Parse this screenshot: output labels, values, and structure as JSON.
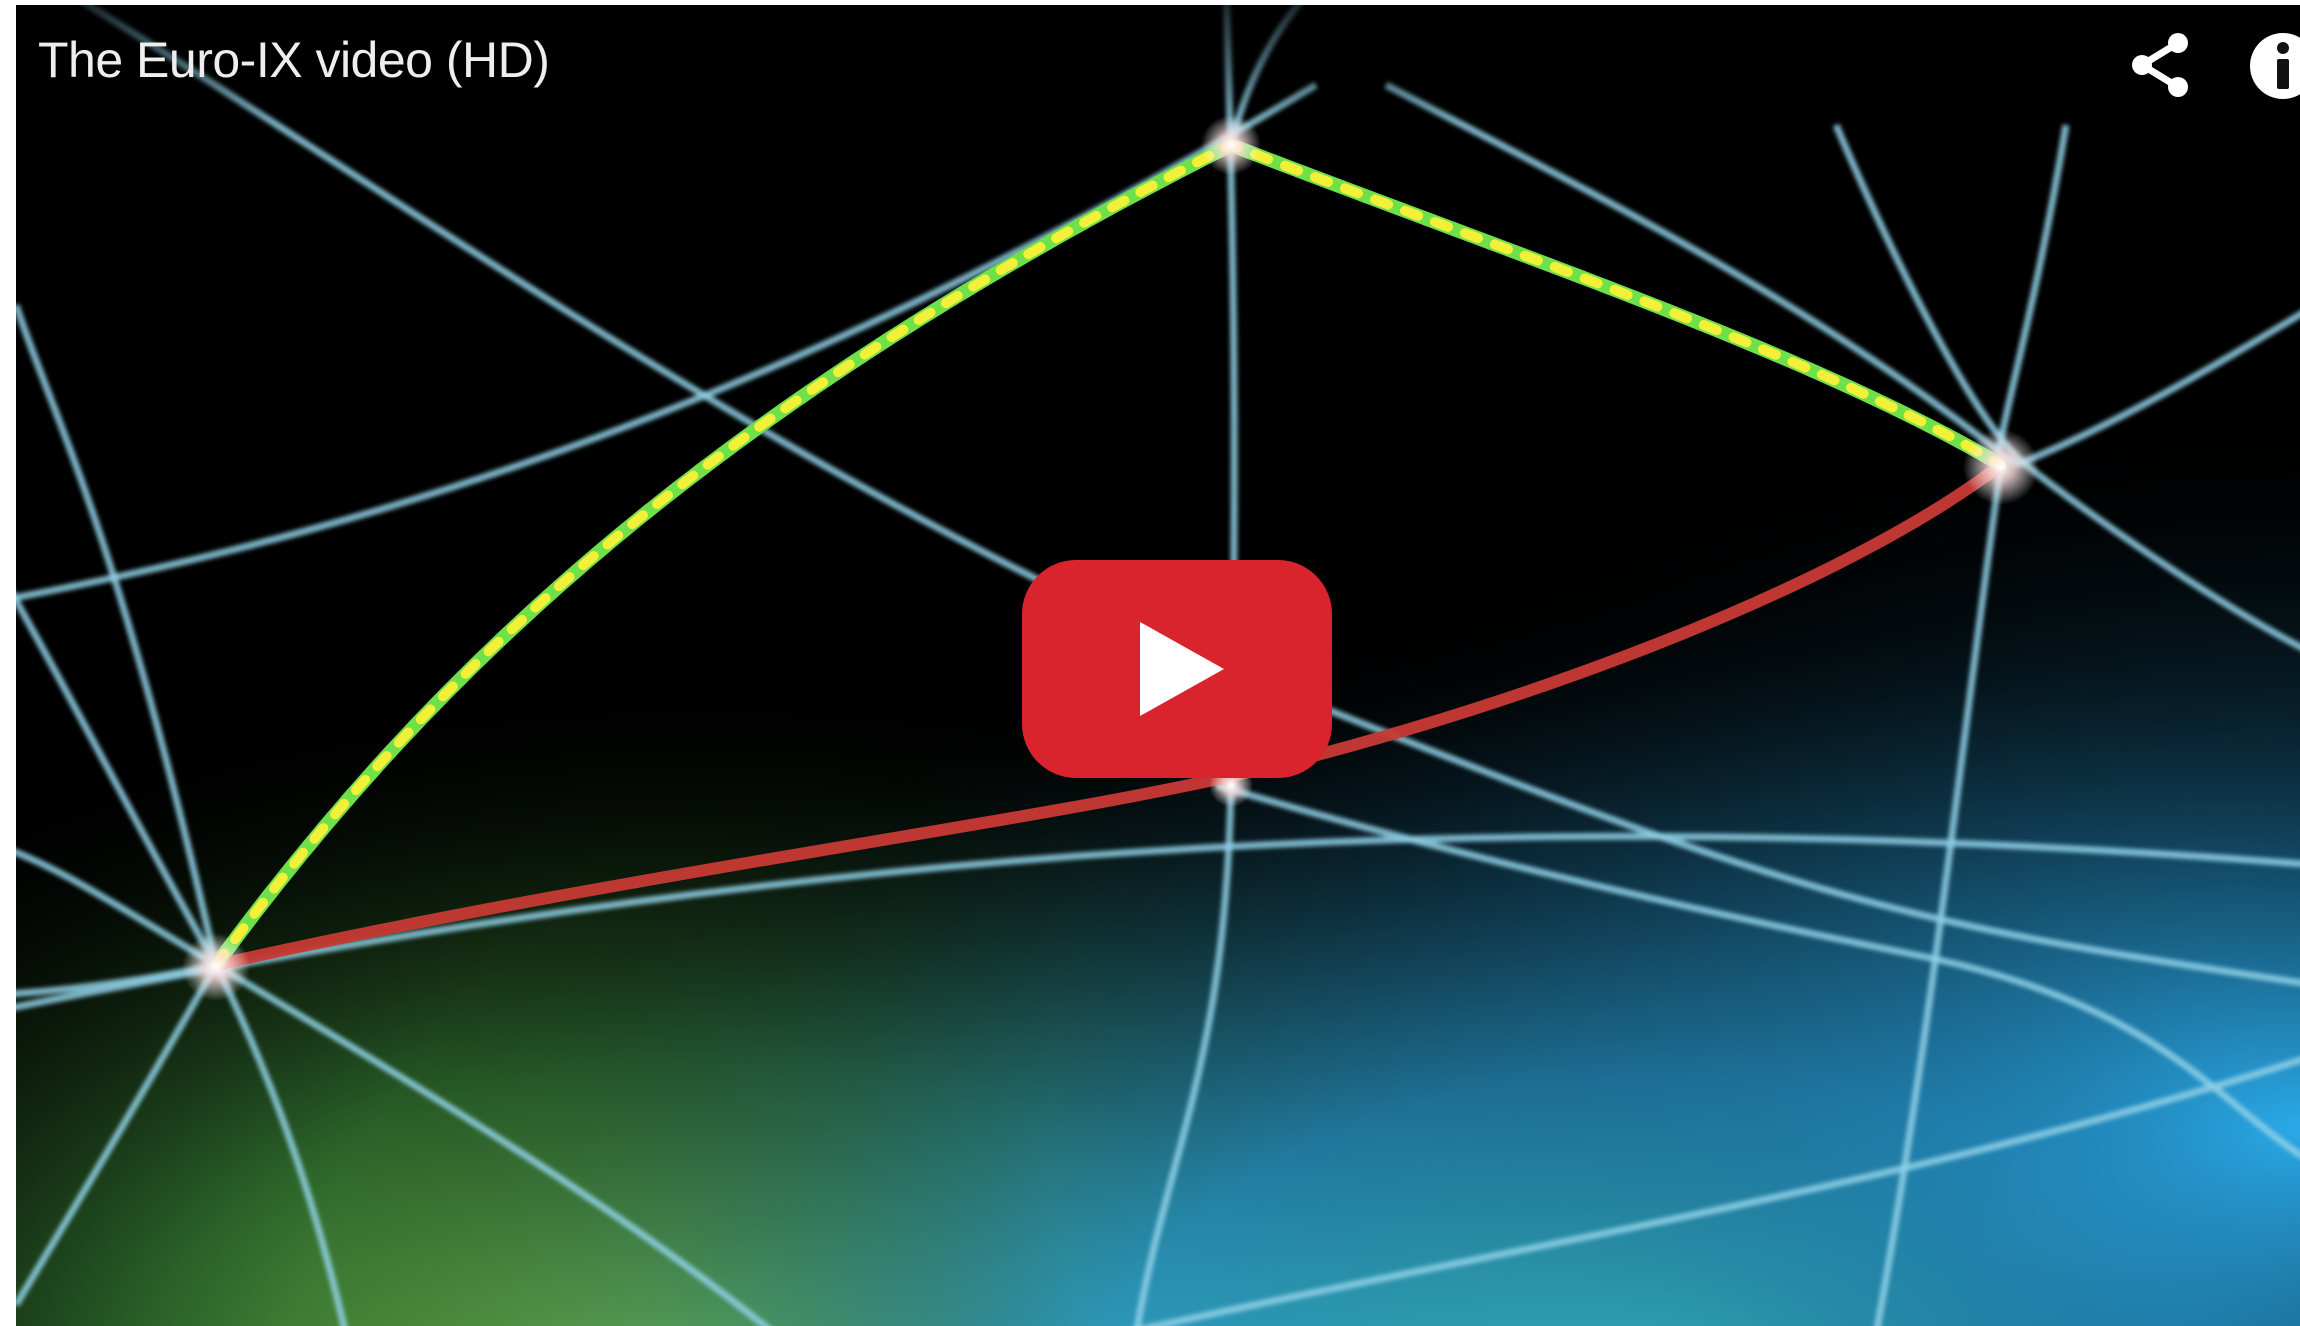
{
  "player": {
    "title": "The Euro-IX video (HD)"
  },
  "icons": {
    "share": "share-icon",
    "info": "info-icon",
    "play": "play-icon"
  },
  "colors": {
    "play_button": "#d9242d",
    "play_triangle": "#ffffff",
    "grid_lines": "#8fd0e6",
    "route_dotted": "#6ee04a",
    "route_dots": "#f3f03a",
    "route_red": "#c83a35",
    "glow_green": "#8ee65a",
    "glow_cyan": "#3ad4ee"
  }
}
